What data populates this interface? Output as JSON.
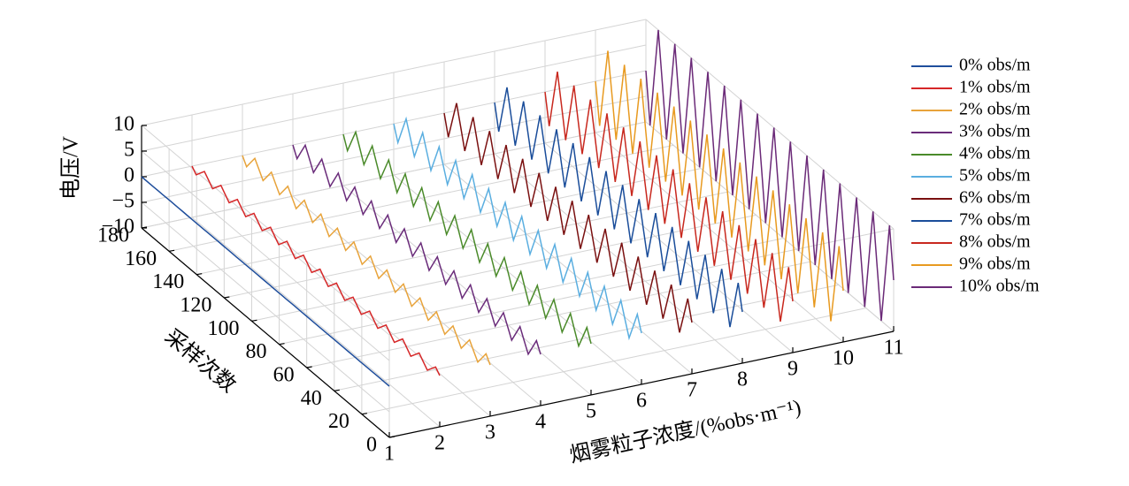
{
  "chart_data": {
    "type": "waterfall",
    "xlabel": "烟雾粒子浓度/(%obs·m⁻¹)",
    "ylabel": "采样次数",
    "zlabel": "电压/V",
    "xlim": [
      1,
      11
    ],
    "xticks": [
      1,
      2,
      3,
      4,
      5,
      6,
      7,
      8,
      9,
      10,
      11
    ],
    "ylim": [
      0,
      180
    ],
    "yticks": [
      0,
      20,
      40,
      60,
      80,
      100,
      120,
      140,
      160,
      180
    ],
    "zlim": [
      -10,
      10
    ],
    "zticks": [
      {
        "value": -10,
        "label": "−10"
      },
      {
        "value": -5,
        "label": "−5"
      },
      0,
      5,
      10
    ],
    "grid": true,
    "legend": "right",
    "x": [
      0,
      3,
      6,
      9,
      12,
      15,
      18,
      21,
      24,
      27,
      30,
      33,
      36,
      39,
      42,
      45,
      48,
      51,
      54,
      57,
      60,
      63,
      66,
      69,
      72,
      75,
      78,
      81,
      84,
      87,
      90,
      93,
      96,
      99,
      102,
      105,
      108,
      111,
      114,
      117,
      120,
      123,
      126,
      129,
      132,
      135,
      138,
      141,
      144,
      147,
      150,
      153,
      156,
      159,
      162,
      165,
      168,
      171,
      174,
      177,
      180
    ],
    "series": [
      {
        "name": "0% obs/m",
        "color": "#1f4e9c",
        "depth": 1,
        "values": [
          0,
          0,
          0,
          0,
          0,
          0,
          0,
          0,
          0,
          0,
          0,
          0,
          0,
          0,
          0,
          0,
          0,
          0,
          0,
          0,
          0,
          0,
          0,
          0,
          0,
          0,
          0,
          0,
          0,
          0,
          0,
          0,
          0,
          0,
          0,
          0,
          0,
          0,
          0,
          0,
          0,
          0,
          0,
          0,
          0,
          0,
          0,
          0,
          0,
          0,
          0,
          0,
          0,
          0,
          0,
          0,
          0,
          0,
          0,
          0,
          0
        ]
      },
      {
        "name": "1% obs/m",
        "color": "#d62728",
        "depth": 2,
        "values": [
          0,
          1,
          0,
          -1,
          0,
          1,
          0,
          -1,
          0,
          1,
          0,
          -1,
          0,
          1,
          0,
          -1,
          0,
          1,
          0,
          -1,
          0,
          1,
          0,
          -1,
          0,
          1,
          0,
          -1,
          0,
          1,
          0,
          -1,
          0,
          1,
          0,
          -1,
          0,
          1,
          0,
          -1,
          0,
          1,
          0,
          -1,
          0,
          1,
          0,
          -1,
          0,
          1,
          0,
          -1,
          0,
          1,
          0,
          -1,
          0,
          1,
          0,
          -1,
          0
        ]
      },
      {
        "name": "2% obs/m",
        "color": "#e8a33a",
        "depth": 3,
        "values": [
          0,
          1.5,
          0,
          -1.5,
          0,
          1.5,
          0,
          -1.5,
          0,
          1.5,
          0,
          -1.5,
          0,
          1.5,
          0,
          -1.5,
          0,
          1.5,
          0,
          -1.5,
          0,
          1.5,
          0,
          -1.5,
          0,
          1.5,
          0,
          -1.5,
          0,
          1.5,
          0,
          -1.5,
          0,
          1.5,
          0,
          -1.5,
          0,
          1.5,
          0,
          -1.5,
          0,
          1.5,
          0,
          -1.5,
          0,
          1.5,
          0,
          -1.5,
          0,
          1.5,
          0,
          -1.5,
          0,
          1.5,
          0,
          -1.5,
          0,
          1.5,
          0,
          -1.5,
          0
        ]
      },
      {
        "name": "3% obs/m",
        "color": "#6a2c7a",
        "depth": 4,
        "values": [
          0,
          2,
          0,
          -2,
          0,
          2,
          0,
          -2,
          0,
          2,
          0,
          -2,
          0,
          2,
          0,
          -2,
          0,
          2,
          0,
          -2,
          0,
          2,
          0,
          -2,
          0,
          2,
          0,
          -2,
          0,
          2,
          0,
          -2,
          0,
          2,
          0,
          -2,
          0,
          2,
          0,
          -2,
          0,
          2,
          0,
          -2,
          0,
          2,
          0,
          -2,
          0,
          2,
          0,
          -2,
          0,
          2,
          0,
          -2,
          0,
          2,
          0,
          -2,
          0
        ]
      },
      {
        "name": "4% obs/m",
        "color": "#4a8a2a",
        "depth": 5,
        "values": [
          0,
          2.5,
          0,
          -2.5,
          0,
          2.5,
          0,
          -2.5,
          0,
          2.5,
          0,
          -2.5,
          0,
          2.5,
          0,
          -2.5,
          0,
          2.5,
          0,
          -2.5,
          0,
          2.5,
          0,
          -2.5,
          0,
          2.5,
          0,
          -2.5,
          0,
          2.5,
          0,
          -2.5,
          0,
          2.5,
          0,
          -2.5,
          0,
          2.5,
          0,
          -2.5,
          0,
          2.5,
          0,
          -2.5,
          0,
          2.5,
          0,
          -2.5,
          0,
          2.5,
          0,
          -2.5,
          0,
          2.5,
          0,
          -2.5,
          0,
          2.5,
          0,
          -2.5,
          0
        ]
      },
      {
        "name": "5% obs/m",
        "color": "#5aaee0",
        "depth": 6,
        "values": [
          0,
          3,
          0,
          -3,
          0,
          3,
          0,
          -3,
          0,
          3,
          0,
          -3,
          0,
          3,
          0,
          -3,
          0,
          3,
          0,
          -3,
          0,
          3,
          0,
          -3,
          0,
          3,
          0,
          -3,
          0,
          3,
          0,
          -3,
          0,
          3,
          0,
          -3,
          0,
          3,
          0,
          -3,
          0,
          3,
          0,
          -3,
          0,
          3,
          0,
          -3,
          0,
          3,
          0,
          -3,
          0,
          3,
          0,
          -3,
          0,
          3,
          0,
          -3,
          0
        ]
      },
      {
        "name": "6% obs/m",
        "color": "#7a1010",
        "depth": 7,
        "values": [
          0,
          4,
          0,
          -4,
          0,
          4,
          0,
          -4,
          0,
          4,
          0,
          -4,
          0,
          4,
          0,
          -4,
          0,
          4,
          0,
          -4,
          0,
          4,
          0,
          -4,
          0,
          4,
          0,
          -4,
          0,
          4,
          0,
          -4,
          0,
          4,
          0,
          -4,
          0,
          4,
          0,
          -4,
          0,
          4,
          0,
          -4,
          0,
          4,
          0,
          -4,
          0,
          4,
          0,
          -4,
          0,
          4,
          0,
          -4,
          0,
          4,
          0,
          -4,
          0
        ]
      },
      {
        "name": "7% obs/m",
        "color": "#1a4d9a",
        "depth": 8,
        "values": [
          0,
          5,
          0,
          -5,
          0,
          5,
          0,
          -5,
          0,
          5,
          0,
          -5,
          0,
          5,
          0,
          -5,
          0,
          5,
          0,
          -5,
          0,
          5,
          0,
          -5,
          0,
          5,
          0,
          -5,
          0,
          5,
          0,
          -5,
          0,
          5,
          0,
          -5,
          0,
          5,
          0,
          -5,
          0,
          5,
          0,
          -5,
          0,
          5,
          0,
          -5,
          0,
          5,
          0,
          -5,
          0,
          5,
          0,
          -5,
          0,
          5,
          0,
          -5,
          0
        ]
      },
      {
        "name": "8% obs/m",
        "color": "#c8281e",
        "depth": 9,
        "values": [
          0,
          6,
          0,
          -6,
          0,
          6,
          0,
          -6,
          0,
          6,
          0,
          -6,
          0,
          6,
          0,
          -6,
          0,
          6,
          0,
          -6,
          0,
          6,
          0,
          -6,
          0,
          6,
          0,
          -6,
          0,
          6,
          0,
          -6,
          0,
          6,
          0,
          -6,
          0,
          6,
          0,
          -6,
          0,
          6,
          0,
          -6,
          0,
          6,
          0,
          -6,
          0,
          6,
          0,
          -6,
          0,
          6,
          0,
          -6,
          0,
          6,
          0,
          -6,
          0
        ]
      },
      {
        "name": "9% obs/m",
        "color": "#e89a20",
        "depth": 10,
        "values": [
          0,
          8,
          0,
          -8,
          0,
          8,
          0,
          -8,
          0,
          8,
          0,
          -8,
          0,
          8,
          0,
          -8,
          0,
          8,
          0,
          -8,
          0,
          8,
          0,
          -8,
          0,
          8,
          0,
          -8,
          0,
          8,
          0,
          -8,
          0,
          8,
          0,
          -8,
          0,
          8,
          0,
          -8,
          0,
          8,
          0,
          -8,
          0,
          8,
          0,
          -8,
          0,
          8,
          0,
          -8,
          0,
          8,
          0,
          -8,
          0,
          8,
          0,
          -8,
          0
        ]
      },
      {
        "name": "10% obs/m",
        "color": "#6b2a78",
        "depth": 11,
        "values": [
          0,
          10,
          0,
          -10,
          0,
          10,
          0,
          -10,
          0,
          10,
          0,
          -10,
          0,
          10,
          0,
          -10,
          0,
          10,
          0,
          -10,
          0,
          10,
          0,
          -10,
          0,
          10,
          0,
          -10,
          0,
          10,
          0,
          -10,
          0,
          10,
          0,
          -10,
          0,
          10,
          0,
          -10,
          0,
          10,
          0,
          -10,
          0,
          10,
          0,
          -10,
          0,
          10,
          0,
          -10,
          0,
          10,
          0,
          -10,
          0,
          10,
          0,
          -10,
          0
        ]
      }
    ]
  }
}
